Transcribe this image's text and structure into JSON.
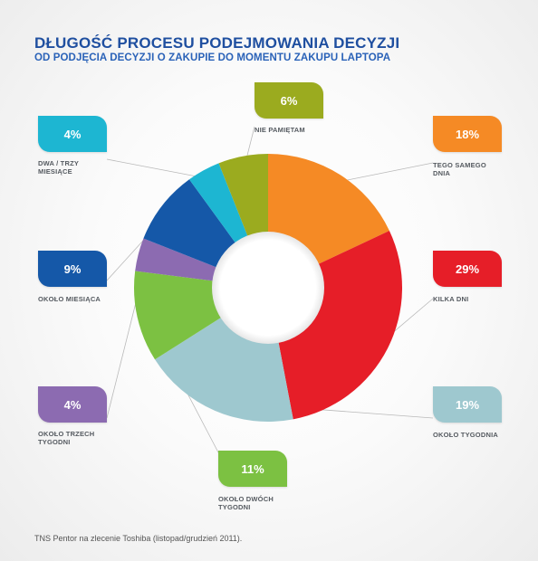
{
  "header": {
    "title": "DŁUGOŚĆ PROCESU PODEJMOWANIA DECYZJI",
    "subtitle": "OD PODJĘCIA DECYZJI O ZAKUPIE DO MOMENTU ZAKUPU LAPTOPA"
  },
  "footer": {
    "source": "TNS Pentor na zlecenie Toshiba (listopad/grudzień 2011)."
  },
  "chart_data": {
    "type": "pie",
    "title": "DŁUGOŚĆ PROCESU PODEJMOWANIA DECYZJI",
    "subtitle": "OD PODJĘCIA DECYZJI O ZAKUPIE DO MOMENTU ZAKUPU LAPTOPA",
    "donut": true,
    "unit": "%",
    "slices": [
      {
        "label": "TEGO SAMEGO DNIA",
        "value": 18,
        "display": "18%",
        "color": "#f58a25"
      },
      {
        "label": "KILKA DNI",
        "value": 29,
        "display": "29%",
        "color": "#e61e28"
      },
      {
        "label": "OKOŁO TYGODNIA",
        "value": 19,
        "display": "19%",
        "color": "#9ec8cf"
      },
      {
        "label": "OKOŁO DWÓCH TYGODNI",
        "value": 11,
        "display": "11%",
        "color": "#7cc142"
      },
      {
        "label": "OKOŁO TRZECH TYGODNI",
        "value": 4,
        "display": "4%",
        "color": "#8c6bb1"
      },
      {
        "label": "OKOŁO MIESIĄCA",
        "value": 9,
        "display": "9%",
        "color": "#1558a8"
      },
      {
        "label": "DWA / TRZY MIESIĄCE",
        "value": 4,
        "display": "4%",
        "color": "#1db6d2"
      },
      {
        "label": "NIE PAMIĘTAM",
        "value": 6,
        "display": "6%",
        "color": "#9bab1f"
      }
    ]
  }
}
